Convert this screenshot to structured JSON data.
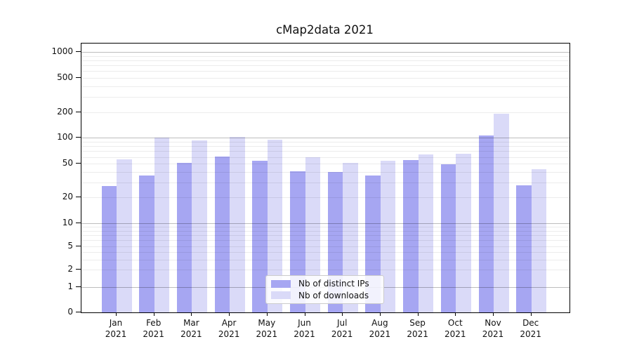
{
  "title": "cMap2data 2021",
  "chart_data": {
    "type": "bar",
    "title": "cMap2data 2021",
    "categories": [
      "Jan 2021",
      "Feb 2021",
      "Mar 2021",
      "Apr 2021",
      "May 2021",
      "Jun 2021",
      "Jul 2021",
      "Aug 2021",
      "Sep 2021",
      "Oct 2021",
      "Nov 2021",
      "Dec 2021"
    ],
    "series": [
      {
        "name": "Nb of distinct IPs",
        "color": "#a6a6f2",
        "values": [
          27,
          36,
          51,
          61,
          54,
          41,
          40,
          36,
          55,
          49,
          107,
          28
        ]
      },
      {
        "name": "Nb of downloads",
        "color": "#dadaf8",
        "values": [
          56,
          101,
          93,
          103,
          95,
          60,
          51,
          54,
          64,
          65,
          193,
          43
        ]
      }
    ],
    "xlabel": "",
    "ylabel": "",
    "yscale": "symlog",
    "ylim": [
      0,
      1250
    ],
    "yticks": [
      0,
      1,
      2,
      5,
      10,
      20,
      50,
      100,
      200,
      500,
      1000
    ],
    "grid": true,
    "legend_position": "lower center"
  },
  "x_axis": {
    "months": [
      "Jan",
      "Feb",
      "Mar",
      "Apr",
      "May",
      "Jun",
      "Jul",
      "Aug",
      "Sep",
      "Oct",
      "Nov",
      "Dec"
    ],
    "year": "2021"
  },
  "y_axis": {
    "tick_labels": [
      "0",
      "1",
      "2",
      "5",
      "10",
      "20",
      "50",
      "100",
      "200",
      "500",
      "1000"
    ]
  },
  "legend": {
    "items": [
      {
        "label": "Nb of distinct IPs",
        "color": "#a6a6f2"
      },
      {
        "label": "Nb of downloads",
        "color": "#dadaf8"
      }
    ]
  }
}
